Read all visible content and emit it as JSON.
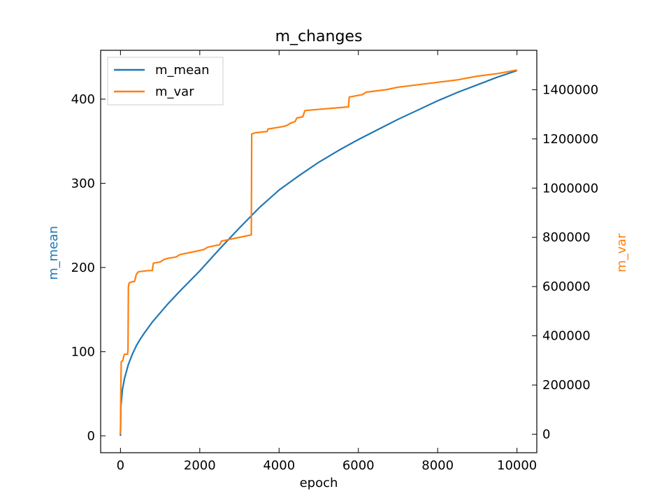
{
  "chart_data": {
    "type": "line",
    "title": "m_changes",
    "xlabel": "epoch",
    "ylabel_left": "m_mean",
    "ylabel_right": "m_var",
    "xlim": [
      -500,
      10500
    ],
    "ylim_left": [
      -20,
      458
    ],
    "ylim_right": [
      -75000,
      1560000
    ],
    "x_ticks": [
      0,
      2000,
      4000,
      6000,
      8000,
      10000
    ],
    "y_left_ticks": [
      0,
      100,
      200,
      300,
      400
    ],
    "y_right_ticks": [
      0,
      200000,
      400000,
      600000,
      800000,
      1000000,
      1200000,
      1400000
    ],
    "grid": false,
    "legend_position": "top-left",
    "series": [
      {
        "name": "m_mean",
        "axis": "left",
        "color": "#1f77b4",
        "points": [
          [
            0,
            0
          ],
          [
            10,
            35
          ],
          [
            50,
            55
          ],
          [
            100,
            68
          ],
          [
            200,
            85
          ],
          [
            300,
            97
          ],
          [
            400,
            107
          ],
          [
            500,
            115
          ],
          [
            600,
            122
          ],
          [
            800,
            135
          ],
          [
            1000,
            146
          ],
          [
            1200,
            157
          ],
          [
            1500,
            172
          ],
          [
            2000,
            196
          ],
          [
            2500,
            222
          ],
          [
            3000,
            247
          ],
          [
            3500,
            271
          ],
          [
            4000,
            292
          ],
          [
            4500,
            309
          ],
          [
            5000,
            325
          ],
          [
            5500,
            339
          ],
          [
            6000,
            352
          ],
          [
            6500,
            364
          ],
          [
            7000,
            376
          ],
          [
            7500,
            387
          ],
          [
            8000,
            398
          ],
          [
            8500,
            408
          ],
          [
            9000,
            417
          ],
          [
            9500,
            426
          ],
          [
            10000,
            434
          ]
        ]
      },
      {
        "name": "m_var",
        "axis": "right",
        "color": "#ff7f0e",
        "points": [
          [
            0,
            0
          ],
          [
            10,
            200000
          ],
          [
            20,
            295000
          ],
          [
            60,
            300000
          ],
          [
            80,
            315000
          ],
          [
            100,
            325000
          ],
          [
            180,
            325000
          ],
          [
            190,
            345000
          ],
          [
            200,
            600000
          ],
          [
            220,
            615000
          ],
          [
            300,
            620000
          ],
          [
            350,
            620000
          ],
          [
            370,
            630000
          ],
          [
            400,
            650000
          ],
          [
            450,
            660000
          ],
          [
            700,
            665000
          ],
          [
            800,
            665000
          ],
          [
            830,
            695000
          ],
          [
            1000,
            700000
          ],
          [
            1100,
            710000
          ],
          [
            1200,
            715000
          ],
          [
            1400,
            720000
          ],
          [
            1500,
            730000
          ],
          [
            1800,
            740000
          ],
          [
            2100,
            750000
          ],
          [
            2200,
            760000
          ],
          [
            2500,
            770000
          ],
          [
            2550,
            785000
          ],
          [
            3000,
            800000
          ],
          [
            3300,
            810000
          ],
          [
            3310,
            1220000
          ],
          [
            3400,
            1225000
          ],
          [
            3700,
            1230000
          ],
          [
            3720,
            1240000
          ],
          [
            4100,
            1250000
          ],
          [
            4200,
            1255000
          ],
          [
            4300,
            1265000
          ],
          [
            4400,
            1270000
          ],
          [
            4450,
            1285000
          ],
          [
            4600,
            1290000
          ],
          [
            4650,
            1315000
          ],
          [
            5000,
            1320000
          ],
          [
            5750,
            1330000
          ],
          [
            5770,
            1370000
          ],
          [
            6100,
            1380000
          ],
          [
            6200,
            1390000
          ],
          [
            6700,
            1400000
          ],
          [
            7000,
            1410000
          ],
          [
            7500,
            1420000
          ],
          [
            8000,
            1430000
          ],
          [
            8500,
            1440000
          ],
          [
            9000,
            1455000
          ],
          [
            9500,
            1465000
          ],
          [
            10000,
            1480000
          ]
        ]
      }
    ]
  }
}
